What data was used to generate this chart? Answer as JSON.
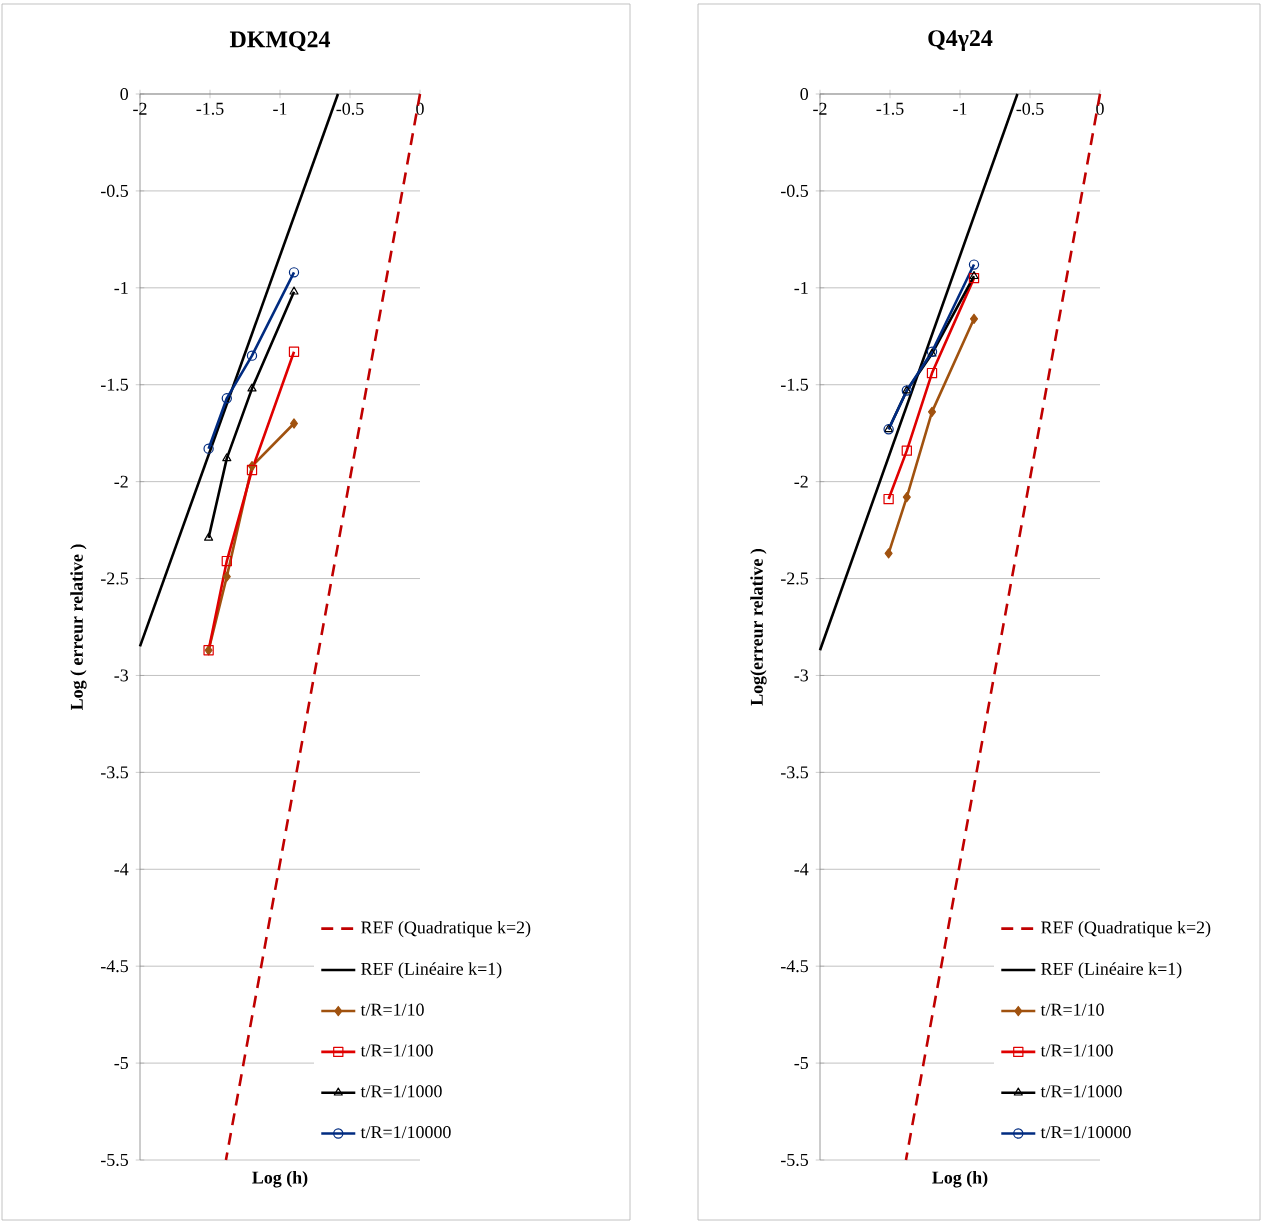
{
  "chart_data": [
    {
      "type": "line",
      "title": "DKMQ24",
      "xlabel": "Log (h)",
      "ylabel": "Log ( erreur relative )",
      "xlim": [
        -2,
        0
      ],
      "ylim": [
        -5.5,
        0
      ],
      "xticks": [
        -2,
        -1.5,
        -1,
        -0.5,
        0
      ],
      "yticks": [
        0,
        -0.5,
        -1,
        -1.5,
        -2,
        -2.5,
        -3,
        -3.5,
        -4,
        -4.5,
        -5,
        -5.5
      ],
      "grid": "y",
      "legend": "bottom right",
      "series": [
        {
          "name": "REF (Quadratique k=2)",
          "color": "#c00000",
          "line_style": "dashed",
          "marker": "none",
          "x": [
            0,
            -1.386
          ],
          "values": [
            0,
            -5.5
          ]
        },
        {
          "name": "REF (Linéaire k=1)",
          "color": "#000000",
          "line_style": "solid",
          "marker": "none",
          "x": [
            -2,
            -0.586
          ],
          "values": [
            -2.85,
            0
          ]
        },
        {
          "name": "t/R=1/10",
          "color": "#a0520f",
          "line_style": "solid",
          "marker": "diamond",
          "x": [
            -0.9,
            -1.2,
            -1.38,
            -1.51
          ],
          "values": [
            -1.7,
            -1.92,
            -2.49,
            -2.87
          ]
        },
        {
          "name": "t/R=1/100",
          "color": "#e00000",
          "line_style": "solid",
          "marker": "square",
          "x": [
            -0.9,
            -1.2,
            -1.38,
            -1.51
          ],
          "values": [
            -1.33,
            -1.94,
            -2.41,
            -2.87
          ]
        },
        {
          "name": "t/R=1/1000",
          "color": "#000000",
          "line_style": "solid",
          "marker": "triangle",
          "x": [
            -0.9,
            -1.2,
            -1.38,
            -1.51
          ],
          "values": [
            -1.02,
            -1.52,
            -1.88,
            -2.29
          ]
        },
        {
          "name": "t/R=1/10000",
          "color": "#002b80",
          "line_style": "solid",
          "marker": "circle",
          "x": [
            -0.9,
            -1.2,
            -1.38,
            -1.51
          ],
          "values": [
            -0.92,
            -1.35,
            -1.57,
            -1.83
          ]
        }
      ]
    },
    {
      "type": "line",
      "title": "Q4γ24",
      "xlabel": "Log (h)",
      "ylabel": "Log(erreur relative )",
      "xlim": [
        -2,
        0
      ],
      "ylim": [
        -5.5,
        0
      ],
      "xticks": [
        -2,
        -1.5,
        -1,
        -0.5,
        0
      ],
      "yticks": [
        0,
        -0.5,
        -1,
        -1.5,
        -2,
        -2.5,
        -3,
        -3.5,
        -4,
        -4.5,
        -5,
        -5.5
      ],
      "grid": "y",
      "legend": "bottom right",
      "series": [
        {
          "name": "REF (Quadratique k=2)",
          "color": "#c00000",
          "line_style": "dashed",
          "marker": "none",
          "x": [
            0,
            -1.386
          ],
          "values": [
            0,
            -5.5
          ]
        },
        {
          "name": "REF (Linéaire k=1)",
          "color": "#000000",
          "line_style": "solid",
          "marker": "none",
          "x": [
            -2,
            -0.59
          ],
          "values": [
            -2.87,
            0
          ]
        },
        {
          "name": "t/R=1/10",
          "color": "#a0520f",
          "line_style": "solid",
          "marker": "diamond",
          "x": [
            -0.9,
            -1.2,
            -1.38,
            -1.51
          ],
          "values": [
            -1.16,
            -1.64,
            -2.08,
            -2.37
          ]
        },
        {
          "name": "t/R=1/100",
          "color": "#e00000",
          "line_style": "solid",
          "marker": "square",
          "x": [
            -0.9,
            -1.2,
            -1.38,
            -1.51
          ],
          "values": [
            -0.95,
            -1.44,
            -1.84,
            -2.09
          ]
        },
        {
          "name": "t/R=1/1000",
          "color": "#000000",
          "line_style": "solid",
          "marker": "triangle",
          "x": [
            -0.9,
            -1.2,
            -1.38,
            -1.51
          ],
          "values": [
            -0.94,
            -1.34,
            -1.53,
            -1.73
          ]
        },
        {
          "name": "t/R=1/10000",
          "color": "#002b80",
          "line_style": "solid",
          "marker": "circle",
          "x": [
            -0.9,
            -1.2,
            -1.38,
            -1.51
          ],
          "values": [
            -0.88,
            -1.33,
            -1.53,
            -1.73
          ]
        }
      ]
    }
  ]
}
